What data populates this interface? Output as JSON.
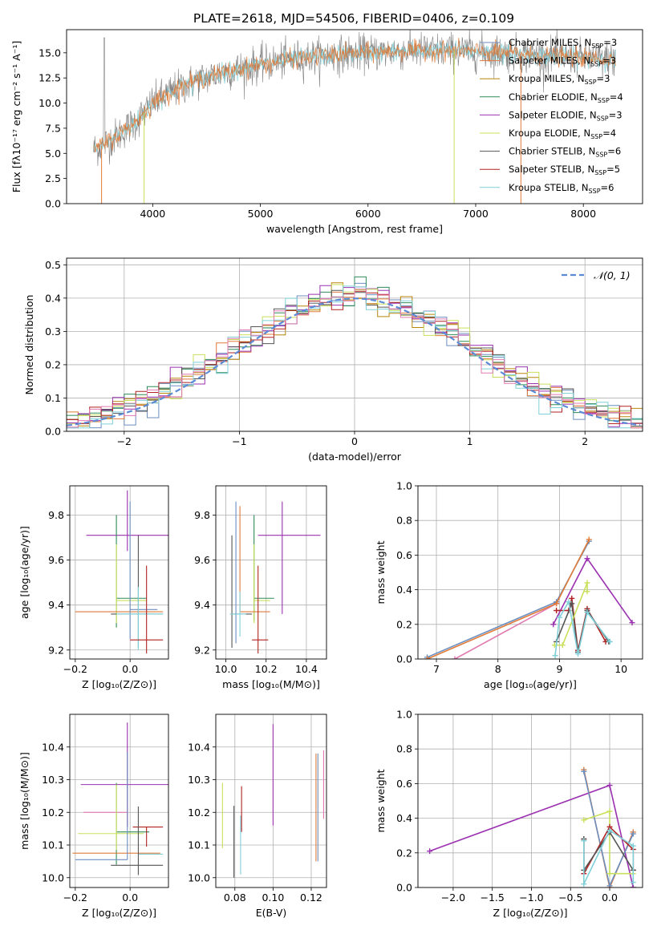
{
  "figure": {
    "title": "PLATE=2618, MJD=54506, FIBERID=0406, z=0.109"
  },
  "colors": {
    "chabrier_miles": "#6c8ebf",
    "salpeter_miles": "#e07b39",
    "kroupa_miles": "#b8860b",
    "chabrier_elodie": "#2e8b57",
    "salpeter_elodie": "#9b30b0",
    "kroupa_elodie": "#c8e05a",
    "chabrier_stelib": "#555555",
    "salpeter_stelib": "#b22222",
    "kroupa_stelib": "#7fd0d8",
    "pink": "#e07ab0",
    "normal_curve": "#5b8bd6",
    "grid": "#b0b0b0"
  },
  "legend_entries": [
    {
      "key": "chabrier_miles",
      "text": "Chabrier MILES, N",
      "sub": "SSP",
      "val": "=3"
    },
    {
      "key": "salpeter_miles",
      "text": "Salpeter MILES, N",
      "sub": "SSP",
      "val": "=3"
    },
    {
      "key": "kroupa_miles",
      "text": "Kroupa MILES, N",
      "sub": "SSP",
      "val": "=3"
    },
    {
      "key": "chabrier_elodie",
      "text": "Chabrier ELODIE, N",
      "sub": "SSP",
      "val": "=4"
    },
    {
      "key": "salpeter_elodie",
      "text": "Salpeter ELODIE, N",
      "sub": "SSP",
      "val": "=3"
    },
    {
      "key": "kroupa_elodie",
      "text": "Kroupa ELODIE, N",
      "sub": "SSP",
      "val": "=4"
    },
    {
      "key": "chabrier_stelib",
      "text": "Chabrier STELIB, N",
      "sub": "SSP",
      "val": "=6"
    },
    {
      "key": "salpeter_stelib",
      "text": "Salpeter STELIB, N",
      "sub": "SSP",
      "val": "=5"
    },
    {
      "key": "kroupa_stelib",
      "text": "Kroupa STELIB, N",
      "sub": "SSP",
      "val": "=6"
    }
  ],
  "chart_data": [
    {
      "id": "spectrum",
      "type": "line",
      "title": "PLATE=2618, MJD=54506, FIBERID=0406, z=0.109",
      "xlabel": "wavelength [Angstrom, rest frame]",
      "ylabel": "Flux [fλ10⁻¹⁷ erg cm⁻² s⁻¹ A⁻¹]",
      "xlim": [
        3200,
        8550
      ],
      "ylim": [
        0,
        17.3
      ],
      "xticks": [
        4000,
        5000,
        6000,
        7000,
        8000
      ],
      "yticks": [
        0.0,
        2.5,
        5.0,
        7.5,
        10.0,
        12.5,
        15.0
      ],
      "ytick_labels": [
        "0.0",
        "2.5",
        "5.0",
        "7.5",
        "10.0",
        "12.5",
        "15.0"
      ],
      "grid": false,
      "legend": "upper right",
      "continuum": {
        "x": [
          3450,
          3550,
          3700,
          3850,
          4000,
          4200,
          4400,
          4600,
          4800,
          5000,
          5200,
          5400,
          5600,
          5800,
          6000,
          6200,
          6400,
          6600,
          6800,
          7000,
          7200,
          7400,
          7600,
          7800,
          8000,
          8200,
          8300
        ],
        "y": [
          5.4,
          5.9,
          7.0,
          8.2,
          10.0,
          11.3,
          12.2,
          12.9,
          13.4,
          13.8,
          14.2,
          14.5,
          14.7,
          14.9,
          15.0,
          15.1,
          15.2,
          15.2,
          15.2,
          15.1,
          15.0,
          14.9,
          14.7,
          14.6,
          14.5,
          14.4,
          14.3
        ]
      },
      "observed_color": "#808080",
      "model_colors": [
        "kroupa_stelib",
        "salpeter_miles"
      ]
    },
    {
      "id": "residuals",
      "type": "step",
      "xlabel": "(data-model)/error",
      "ylabel": "Normed distribution",
      "xlim": [
        -2.5,
        2.5
      ],
      "ylim": [
        0,
        0.52
      ],
      "xticks": [
        -2,
        -1,
        0,
        1,
        2
      ],
      "xtick_labels": [
        "−2",
        "−1",
        "0",
        "1",
        "2"
      ],
      "yticks": [
        0.0,
        0.1,
        0.2,
        0.3,
        0.4,
        0.5
      ],
      "ytick_labels": [
        "0.0",
        "0.1",
        "0.2",
        "0.3",
        "0.4",
        "0.5"
      ],
      "grid": true,
      "legend": "upper right",
      "normal_label": "𝒩(0, 1)",
      "bin_width": 0.1,
      "series_colors": [
        "chabrier_miles",
        "salpeter_miles",
        "kroupa_miles",
        "chabrier_elodie",
        "salpeter_elodie",
        "kroupa_elodie",
        "chabrier_stelib",
        "salpeter_stelib",
        "kroupa_stelib",
        "pink"
      ]
    },
    {
      "id": "age_vs_Z",
      "type": "errorbar",
      "xlabel": "Z [log₁₀(Z/Z⊙)]",
      "ylabel": "age  [log₁₀(age/yr)]",
      "xlim": [
        -0.22,
        0.14
      ],
      "ylim": [
        9.16,
        9.93
      ],
      "xticks": [
        -0.2,
        0.0
      ],
      "xtick_labels": [
        "−0.2",
        "0.0"
      ],
      "yticks": [
        9.2,
        9.4,
        9.6,
        9.8
      ],
      "ytick_labels": [
        "9.2",
        "9.4",
        "9.6",
        "9.8"
      ],
      "grid": true,
      "points": [
        {
          "c": "salpeter_elodie",
          "x": -0.01,
          "y": 9.71,
          "xerr": [
            0.15,
            0.31
          ],
          "yerr": [
            0.07,
            0.2
          ]
        },
        {
          "c": "chabrier_elodie",
          "x": -0.05,
          "y": 9.43,
          "xerr": [
            0.0,
            0.11
          ],
          "yerr": [
            0.13,
            0.37
          ]
        },
        {
          "c": "kroupa_elodie",
          "x": -0.05,
          "y": 9.42,
          "xerr": [
            0.0,
            0.11
          ],
          "yerr": [
            0.1,
            0.25
          ]
        },
        {
          "c": "salpeter_miles",
          "x": 0.0,
          "y": 9.37,
          "xerr": [
            0.2,
            0.12
          ],
          "yerr": [
            0.0,
            0.0
          ]
        },
        {
          "c": "chabrier_miles",
          "x": 0.0,
          "y": 9.38,
          "xerr": [
            0.0,
            0.1
          ],
          "yerr": [
            0.13,
            0.48
          ]
        },
        {
          "c": "chabrier_stelib",
          "x": 0.03,
          "y": 9.36,
          "xerr": [
            0.1,
            0.09
          ],
          "yerr": [
            0.15,
            0.35
          ]
        },
        {
          "c": "kroupa_stelib",
          "x": 0.03,
          "y": 9.36,
          "xerr": [
            0.08,
            0.09
          ],
          "yerr": [
            0.16,
            0.12
          ]
        },
        {
          "c": "salpeter_stelib",
          "x": 0.06,
          "y": 9.245,
          "xerr": [
            0.06,
            0.06
          ],
          "yerr": [
            0.06,
            0.33
          ]
        }
      ]
    },
    {
      "id": "age_vs_mass",
      "type": "errorbar",
      "xlabel": "mass [log₁₀(M/M⊙)]",
      "ylabel": "",
      "xlim": [
        9.95,
        10.5
      ],
      "ylim": [
        9.16,
        9.93
      ],
      "xticks": [
        10.0,
        10.2,
        10.4
      ],
      "xtick_labels": [
        "10.0",
        "10.2",
        "10.4"
      ],
      "yticks": [
        9.2,
        9.4,
        9.6,
        9.8
      ],
      "ytick_labels": [
        "9.2",
        "9.4",
        "9.6",
        "9.8"
      ],
      "grid": true,
      "points": [
        {
          "c": "salpeter_elodie",
          "x": 10.28,
          "y": 9.71,
          "xerr": [
            0.12,
            0.19
          ],
          "yerr": [
            0.35,
            0.15
          ]
        },
        {
          "c": "chabrier_elodie",
          "x": 10.14,
          "y": 9.43,
          "xerr": [
            0.0,
            0.1
          ],
          "yerr": [
            0.1,
            0.37
          ]
        },
        {
          "c": "kroupa_elodie",
          "x": 10.14,
          "y": 9.42,
          "xerr": [
            0.0,
            0.08
          ],
          "yerr": [
            0.1,
            0.25
          ]
        },
        {
          "c": "salpeter_miles",
          "x": 10.07,
          "y": 9.37,
          "xerr": [
            0.0,
            0.15
          ],
          "yerr": [
            0.0,
            0.47
          ]
        },
        {
          "c": "chabrier_miles",
          "x": 10.05,
          "y": 9.38,
          "xerr": [
            0.0,
            0.0
          ],
          "yerr": [
            0.15,
            0.48
          ]
        },
        {
          "c": "chabrier_stelib",
          "x": 10.03,
          "y": 9.36,
          "xerr": [
            0.0,
            0.1
          ],
          "yerr": [
            0.15,
            0.35
          ]
        },
        {
          "c": "kroupa_stelib",
          "x": 10.07,
          "y": 9.36,
          "xerr": [
            0.05,
            0.03
          ],
          "yerr": [
            0.1,
            0.1
          ]
        },
        {
          "c": "salpeter_stelib",
          "x": 10.16,
          "y": 9.245,
          "xerr": [
            0.03,
            0.05
          ],
          "yerr": [
            0.06,
            0.33
          ]
        }
      ]
    },
    {
      "id": "weight_vs_age",
      "type": "line",
      "xlabel": "age  [log₁₀(age/yr)]",
      "ylabel": "mass weight",
      "xlim": [
        6.7,
        10.35
      ],
      "ylim": [
        0.0,
        1.0
      ],
      "xticks": [
        7,
        8,
        9,
        10
      ],
      "xtick_labels": [
        "7",
        "8",
        "9",
        "10"
      ],
      "yticks": [
        0.0,
        0.2,
        0.4,
        0.6,
        0.8,
        1.0
      ],
      "ytick_labels": [
        "0.0",
        "0.2",
        "0.4",
        "0.6",
        "0.8",
        "1.0"
      ],
      "grid": true,
      "series": [
        {
          "c": "pink",
          "x": [
            7.3,
            8.95
          ],
          "y": [
            0.0,
            0.32
          ]
        },
        {
          "c": "salpeter_elodie",
          "x": [
            8.9,
            9.45,
            10.18
          ],
          "y": [
            0.2,
            0.58,
            0.21
          ]
        },
        {
          "c": "chabrier_miles",
          "x": [
            6.85,
            8.95,
            9.48
          ],
          "y": [
            0.01,
            0.33,
            0.68
          ]
        },
        {
          "c": "salpeter_miles",
          "x": [
            6.85,
            8.95,
            9.48
          ],
          "y": [
            0.0,
            0.32,
            0.69
          ]
        },
        {
          "c": "salpeter_stelib",
          "x": [
            8.95,
            9.15,
            9.2,
            9.3,
            9.45,
            9.75
          ],
          "y": [
            0.28,
            0.28,
            0.35,
            0.05,
            0.29,
            0.1
          ]
        },
        {
          "c": "chabrier_stelib",
          "x": [
            8.95,
            9.2,
            9.3,
            9.45,
            9.8
          ],
          "y": [
            0.1,
            0.32,
            0.04,
            0.28,
            0.1
          ]
        },
        {
          "c": "kroupa_elodie",
          "x": [
            8.92,
            9.05,
            9.45,
            9.45
          ],
          "y": [
            0.08,
            0.08,
            0.44,
            0.39
          ]
        },
        {
          "c": "kroupa_stelib",
          "x": [
            8.93,
            9.0,
            9.15,
            9.3,
            9.45,
            9.82
          ],
          "y": [
            0.02,
            0.24,
            0.33,
            0.03,
            0.27,
            0.1
          ]
        }
      ]
    },
    {
      "id": "mass_vs_Z",
      "type": "errorbar",
      "xlabel": "Z [log₁₀(Z/Z⊙)]",
      "ylabel": "mass [log₁₀(M/M⊙)]",
      "xlim": [
        -0.22,
        0.14
      ],
      "ylim": [
        9.97,
        10.5
      ],
      "xticks": [
        -0.2,
        0.0
      ],
      "xtick_labels": [
        "−0.2",
        "0.0"
      ],
      "yticks": [
        10.0,
        10.1,
        10.2,
        10.3,
        10.4
      ],
      "ytick_labels": [
        "10.0",
        "10.1",
        "10.2",
        "10.3",
        "10.4"
      ],
      "grid": true,
      "points": [
        {
          "c": "salpeter_elodie",
          "x": -0.01,
          "y": 10.285,
          "xerr": [
            0.17,
            0.3
          ],
          "yerr": [
            0.13,
            0.19
          ]
        },
        {
          "c": "pink",
          "x": -0.01,
          "y": 10.2,
          "xerr": [
            0.16,
            0.0
          ],
          "yerr": [
            0.03,
            0.03
          ]
        },
        {
          "c": "chabrier_elodie",
          "x": -0.05,
          "y": 10.14,
          "xerr": [
            0.0,
            0.12
          ],
          "yerr": [
            0.1,
            0.15
          ]
        },
        {
          "c": "kroupa_elodie",
          "x": -0.05,
          "y": 10.135,
          "xerr": [
            0.14,
            0.1
          ],
          "yerr": [
            0.05,
            0.15
          ]
        },
        {
          "c": "salpeter_stelib",
          "x": 0.06,
          "y": 10.155,
          "xerr": [
            0.05,
            0.06
          ],
          "yerr": [
            0.06,
            0.0
          ]
        },
        {
          "c": "salpeter_miles",
          "x": -0.04,
          "y": 10.075,
          "xerr": [
            0.17,
            0.15
          ],
          "yerr": [
            0.0,
            0.0
          ]
        },
        {
          "c": "kroupa_stelib",
          "x": 0.03,
          "y": 10.072,
          "xerr": [
            0.0,
            0.09
          ],
          "yerr": [
            0.0,
            0.0
          ]
        },
        {
          "c": "chabrier_miles",
          "x": -0.01,
          "y": 10.055,
          "xerr": [
            0.19,
            0.0
          ],
          "yerr": [
            0.0,
            0.33
          ]
        },
        {
          "c": "chabrier_stelib",
          "x": 0.03,
          "y": 10.038,
          "xerr": [
            0.1,
            0.09
          ],
          "yerr": [
            0.03,
            0.18
          ]
        }
      ]
    },
    {
      "id": "mass_vs_ebv",
      "type": "errorbar",
      "xlabel": "E(B-V)",
      "ylabel": "",
      "xlim": [
        0.07,
        0.128
      ],
      "ylim": [
        9.97,
        10.5
      ],
      "xticks": [
        0.08,
        0.1,
        0.12
      ],
      "xtick_labels": [
        "0.08",
        "0.10",
        "0.12"
      ],
      "yticks": [
        10.0,
        10.1,
        10.2,
        10.3,
        10.4
      ],
      "ytick_labels": [
        "10.0",
        "10.1",
        "10.2",
        "10.3",
        "10.4"
      ],
      "grid": true,
      "points": [
        {
          "c": "kroupa_elodie",
          "x": 0.0735,
          "y": 10.19,
          "xerr": [
            0,
            0
          ],
          "yerr": [
            0.1,
            0.1
          ]
        },
        {
          "c": "chabrier_stelib",
          "x": 0.0795,
          "y": 10.1,
          "xerr": [
            0,
            0
          ],
          "yerr": [
            0.1,
            0.12
          ]
        },
        {
          "c": "kroupa_stelib",
          "x": 0.083,
          "y": 10.1,
          "xerr": [
            0,
            0
          ],
          "yerr": [
            0.09,
            0.09
          ]
        },
        {
          "c": "salpeter_stelib",
          "x": 0.0835,
          "y": 10.2,
          "xerr": [
            0,
            0
          ],
          "yerr": [
            0.06,
            0.08
          ]
        },
        {
          "c": "salpeter_elodie",
          "x": 0.1,
          "y": 10.31,
          "xerr": [
            0,
            0
          ],
          "yerr": [
            0.15,
            0.16
          ]
        },
        {
          "c": "salpeter_miles",
          "x": 0.1225,
          "y": 10.1,
          "xerr": [
            0,
            0
          ],
          "yerr": [
            0.05,
            0.28
          ]
        },
        {
          "c": "chabrier_miles",
          "x": 0.1235,
          "y": 10.2,
          "xerr": [
            0,
            0
          ],
          "yerr": [
            0.15,
            0.18
          ]
        },
        {
          "c": "pink",
          "x": 0.1265,
          "y": 10.28,
          "xerr": [
            0,
            0
          ],
          "yerr": [
            0.1,
            0.11
          ]
        }
      ]
    },
    {
      "id": "weight_vs_Z",
      "type": "line",
      "xlabel": "Z [log₁₀(Z/Z⊙)]",
      "ylabel": "mass weight",
      "xlim": [
        -2.45,
        0.42
      ],
      "ylim": [
        0.0,
        1.0
      ],
      "xticks": [
        -2.0,
        -1.5,
        -1.0,
        -0.5,
        0.0
      ],
      "xtick_labels": [
        "−2.0",
        "−1.5",
        "−1.0",
        "−0.5",
        "0.0"
      ],
      "yticks": [
        0.0,
        0.2,
        0.4,
        0.6,
        0.8,
        1.0
      ],
      "ytick_labels": [
        "0.0",
        "0.2",
        "0.4",
        "0.6",
        "0.8",
        "1.0"
      ],
      "grid": true,
      "series": [
        {
          "c": "salpeter_elodie",
          "x": [
            -2.3,
            0.0,
            0.3,
            0.3
          ],
          "y": [
            0.21,
            0.59,
            0.0,
            0.0
          ]
        },
        {
          "c": "salpeter_miles",
          "x": [
            -0.33,
            0.0,
            0.3
          ],
          "y": [
            0.68,
            0.0,
            0.32
          ]
        },
        {
          "c": "chabrier_miles",
          "x": [
            -0.33,
            0.0,
            0.3
          ],
          "y": [
            0.67,
            0.01,
            0.31
          ]
        },
        {
          "c": "kroupa_elodie",
          "x": [
            -0.33,
            0.0,
            0.0,
            0.3
          ],
          "y": [
            0.39,
            0.44,
            0.08,
            0.08
          ]
        },
        {
          "c": "salpeter_stelib",
          "x": [
            -0.33,
            -0.33,
            0.0,
            0.3,
            0.3
          ],
          "y": [
            0.28,
            0.08,
            0.35,
            0.22,
            0.1
          ]
        },
        {
          "c": "chabrier_stelib",
          "x": [
            -0.33,
            -0.33,
            0.0,
            0.3
          ],
          "y": [
            0.28,
            0.1,
            0.32,
            0.1
          ]
        },
        {
          "c": "kroupa_stelib",
          "x": [
            -0.33,
            -0.33,
            0.0,
            0.3,
            0.3
          ],
          "y": [
            0.27,
            0.02,
            0.33,
            0.24,
            0.03
          ]
        }
      ]
    }
  ]
}
